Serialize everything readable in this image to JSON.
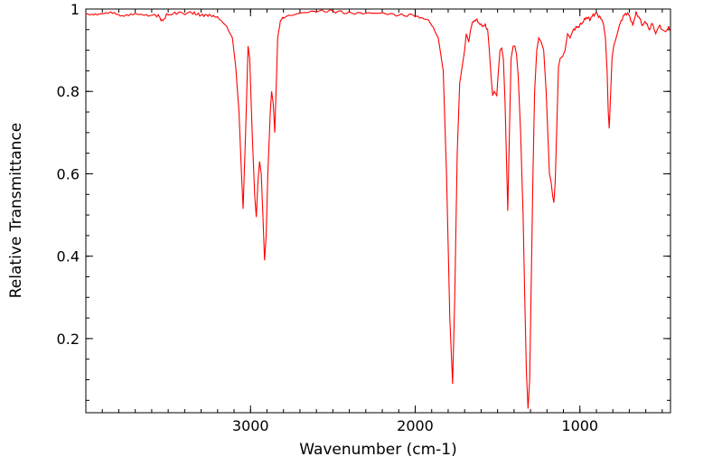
{
  "chart_data": {
    "type": "line",
    "xlabel": "Wavenumber (cm-1)",
    "ylabel": "Relative Transmittance",
    "xlim": [
      4000,
      450
    ],
    "ylim": [
      0.02,
      1.0
    ],
    "x_reversed": true,
    "xticks": [
      3000,
      2000,
      1000
    ],
    "xtick_labels": [
      "3000",
      "2000",
      "1000"
    ],
    "yticks": [
      0.2,
      0.4,
      0.6,
      0.8,
      1.0
    ],
    "ytick_labels": [
      "0.2",
      "0.4",
      "0.6",
      "0.8",
      "1"
    ],
    "grid": false,
    "legend": "none",
    "series": [
      {
        "color": "#ff0000",
        "points": [
          [
            4000,
            0.99
          ],
          [
            3930,
            0.985
          ],
          [
            3850,
            0.99
          ],
          [
            3780,
            0.985
          ],
          [
            3700,
            0.99
          ],
          [
            3620,
            0.985
          ],
          [
            3560,
            0.985
          ],
          [
            3535,
            0.97
          ],
          [
            3510,
            0.985
          ],
          [
            3450,
            0.99
          ],
          [
            3350,
            0.99
          ],
          [
            3300,
            0.985
          ],
          [
            3250,
            0.985
          ],
          [
            3200,
            0.98
          ],
          [
            3150,
            0.96
          ],
          [
            3110,
            0.93
          ],
          [
            3090,
            0.86
          ],
          [
            3070,
            0.75
          ],
          [
            3055,
            0.6
          ],
          [
            3045,
            0.515
          ],
          [
            3030,
            0.7
          ],
          [
            3015,
            0.91
          ],
          [
            3005,
            0.88
          ],
          [
            2990,
            0.7
          ],
          [
            2975,
            0.55
          ],
          [
            2965,
            0.495
          ],
          [
            2955,
            0.58
          ],
          [
            2945,
            0.63
          ],
          [
            2935,
            0.6
          ],
          [
            2925,
            0.5
          ],
          [
            2915,
            0.39
          ],
          [
            2905,
            0.45
          ],
          [
            2895,
            0.6
          ],
          [
            2880,
            0.75
          ],
          [
            2872,
            0.8
          ],
          [
            2862,
            0.77
          ],
          [
            2853,
            0.7
          ],
          [
            2845,
            0.8
          ],
          [
            2835,
            0.93
          ],
          [
            2820,
            0.97
          ],
          [
            2800,
            0.98
          ],
          [
            2700,
            0.99
          ],
          [
            2600,
            0.995
          ],
          [
            2500,
            0.995
          ],
          [
            2400,
            0.99
          ],
          [
            2300,
            0.99
          ],
          [
            2200,
            0.99
          ],
          [
            2100,
            0.985
          ],
          [
            2000,
            0.985
          ],
          [
            1920,
            0.975
          ],
          [
            1860,
            0.93
          ],
          [
            1830,
            0.85
          ],
          [
            1810,
            0.6
          ],
          [
            1790,
            0.25
          ],
          [
            1773,
            0.09
          ],
          [
            1760,
            0.3
          ],
          [
            1745,
            0.65
          ],
          [
            1730,
            0.82
          ],
          [
            1715,
            0.86
          ],
          [
            1700,
            0.9
          ],
          [
            1690,
            0.94
          ],
          [
            1675,
            0.92
          ],
          [
            1660,
            0.96
          ],
          [
            1645,
            0.97
          ],
          [
            1630,
            0.975
          ],
          [
            1600,
            0.96
          ],
          [
            1575,
            0.96
          ],
          [
            1560,
            0.95
          ],
          [
            1550,
            0.9
          ],
          [
            1540,
            0.84
          ],
          [
            1530,
            0.79
          ],
          [
            1520,
            0.8
          ],
          [
            1505,
            0.79
          ],
          [
            1495,
            0.85
          ],
          [
            1485,
            0.9
          ],
          [
            1475,
            0.905
          ],
          [
            1465,
            0.88
          ],
          [
            1455,
            0.78
          ],
          [
            1445,
            0.62
          ],
          [
            1438,
            0.51
          ],
          [
            1428,
            0.7
          ],
          [
            1418,
            0.88
          ],
          [
            1405,
            0.91
          ],
          [
            1395,
            0.91
          ],
          [
            1385,
            0.89
          ],
          [
            1375,
            0.84
          ],
          [
            1360,
            0.7
          ],
          [
            1345,
            0.5
          ],
          [
            1335,
            0.3
          ],
          [
            1325,
            0.12
          ],
          [
            1315,
            0.03
          ],
          [
            1305,
            0.1
          ],
          [
            1295,
            0.35
          ],
          [
            1285,
            0.6
          ],
          [
            1275,
            0.8
          ],
          [
            1262,
            0.9
          ],
          [
            1250,
            0.93
          ],
          [
            1235,
            0.92
          ],
          [
            1220,
            0.9
          ],
          [
            1205,
            0.8
          ],
          [
            1195,
            0.7
          ],
          [
            1185,
            0.6
          ],
          [
            1175,
            0.58
          ],
          [
            1165,
            0.545
          ],
          [
            1158,
            0.53
          ],
          [
            1150,
            0.58
          ],
          [
            1140,
            0.72
          ],
          [
            1130,
            0.86
          ],
          [
            1120,
            0.88
          ],
          [
            1105,
            0.885
          ],
          [
            1090,
            0.9
          ],
          [
            1075,
            0.94
          ],
          [
            1060,
            0.93
          ],
          [
            1040,
            0.95
          ],
          [
            1020,
            0.955
          ],
          [
            1000,
            0.96
          ],
          [
            980,
            0.97
          ],
          [
            960,
            0.98
          ],
          [
            940,
            0.975
          ],
          [
            920,
            0.985
          ],
          [
            900,
            0.99
          ],
          [
            880,
            0.98
          ],
          [
            860,
            0.97
          ],
          [
            845,
            0.93
          ],
          [
            835,
            0.85
          ],
          [
            828,
            0.75
          ],
          [
            822,
            0.71
          ],
          [
            815,
            0.78
          ],
          [
            805,
            0.88
          ],
          [
            795,
            0.91
          ],
          [
            780,
            0.93
          ],
          [
            760,
            0.96
          ],
          [
            740,
            0.98
          ],
          [
            720,
            0.99
          ],
          [
            700,
            0.985
          ],
          [
            680,
            0.96
          ],
          [
            660,
            0.99
          ],
          [
            640,
            0.98
          ],
          [
            620,
            0.96
          ],
          [
            600,
            0.97
          ],
          [
            580,
            0.95
          ],
          [
            560,
            0.965
          ],
          [
            540,
            0.94
          ],
          [
            520,
            0.96
          ],
          [
            500,
            0.95
          ],
          [
            480,
            0.945
          ],
          [
            460,
            0.955
          ],
          [
            450,
            0.95
          ]
        ]
      }
    ]
  }
}
